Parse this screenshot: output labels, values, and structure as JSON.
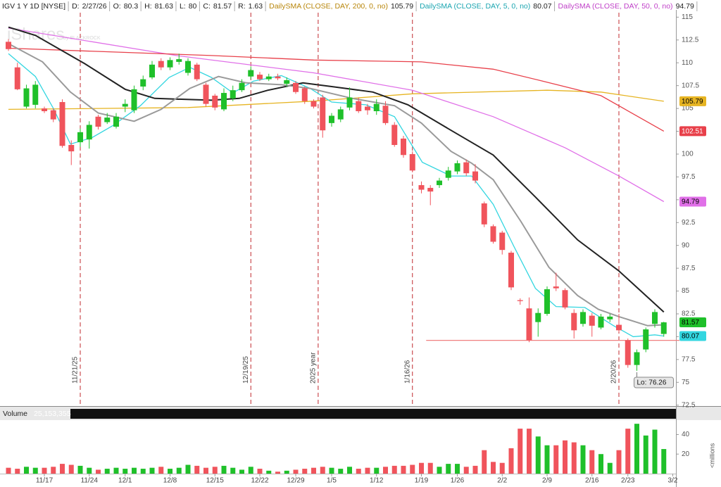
{
  "header": {
    "symbol": "IGV 1 Y 1D [NYSE]",
    "date_label": "D:",
    "date": "2/27/26",
    "open_label": "O:",
    "high_label": "H:",
    "low_label": "L:",
    "close_label": "C:",
    "range_label": "R:",
    "range": 1.63,
    "watermark": "iShares",
    "watermark_sub": "by BLACKROCK"
  },
  "chart_data": [
    {
      "type": "candlestick",
      "open": [
        112.3,
        109.5,
        105.2,
        105.4,
        105,
        104.8,
        105.7,
        101,
        101.3,
        101.6,
        104.1,
        103.5,
        103,
        105.2,
        104.8,
        107.4,
        108.4,
        110.2,
        109.5,
        110.1,
        108.9,
        109.8,
        107.6,
        106.4,
        104.9,
        106.1,
        107,
        108.5,
        108.7,
        108.2,
        108.5,
        107.7,
        107.8,
        107.2,
        105.8,
        106.2,
        103.4,
        103.8,
        105.1,
        105.8,
        105.2,
        104.7,
        105.3,
        103.2,
        101.7,
        100,
        96.6,
        96.3,
        96.6,
        97.4,
        98.1,
        99.1,
        98.1,
        94.6,
        92.1,
        91.4,
        89.2,
        84,
        83.1,
        81.6,
        82.5,
        85.5,
        85.1,
        82.6,
        81.4,
        82.3,
        81,
        81.9,
        81.3,
        79.6,
        76.9,
        78.6,
        81.4,
        80.3
      ],
      "high": [
        112.6,
        110,
        107.6,
        108,
        105.2,
        105,
        106,
        101.5,
        102.8,
        103.6,
        104.3,
        104.5,
        104.5,
        106,
        107.5,
        108.6,
        110.2,
        110.5,
        110.6,
        111,
        110.5,
        110,
        107.8,
        106.6,
        107.2,
        107.5,
        108.2,
        109.6,
        109,
        108.8,
        108.8,
        108.4,
        108,
        107.4,
        106,
        106.5,
        104.5,
        105.2,
        107.3,
        106.2,
        105.5,
        106,
        105.8,
        103.5,
        102,
        100.3,
        97,
        96.6,
        97.4,
        98.6,
        99.3,
        99.4,
        98.9,
        94.8,
        92.3,
        91.6,
        89.4,
        84.2,
        84.3,
        83.1,
        85.5,
        87,
        85.3,
        83,
        83,
        82.6,
        82.5,
        82.5,
        82.5,
        79.8,
        78.6,
        81,
        83,
        81.63
      ],
      "low": [
        111.3,
        107,
        105,
        105,
        104.5,
        103.5,
        100.7,
        98.8,
        100.8,
        100.6,
        102.7,
        103.3,
        102.8,
        104.6,
        104.5,
        107,
        108.2,
        109.2,
        109.2,
        109.8,
        108.6,
        108,
        105.2,
        104.8,
        104.7,
        105.8,
        106.8,
        108.2,
        108,
        108,
        108.1,
        107.4,
        106.6,
        105.5,
        105,
        101.8,
        103,
        103.5,
        104.8,
        104.5,
        104.3,
        104.3,
        103.2,
        100.8,
        99.6,
        98,
        95.7,
        94.4,
        96.3,
        97.1,
        97.8,
        97.6,
        96.8,
        92,
        90.2,
        89,
        85.1,
        83.5,
        79.4,
        80,
        82.3,
        85,
        83,
        79.8,
        81.1,
        80,
        80.8,
        81.6,
        80.5,
        76.6,
        76.26,
        78.3,
        81,
        80
      ],
      "close": [
        111.5,
        107.1,
        107.2,
        107.6,
        104.7,
        103.8,
        100.9,
        100.3,
        102.4,
        103.2,
        103,
        104,
        104.1,
        105.5,
        107.1,
        108.2,
        109.8,
        109.5,
        110.3,
        110.4,
        110.2,
        108.2,
        105.5,
        105.1,
        106.7,
        107,
        107.8,
        109.2,
        108.2,
        108.5,
        108.3,
        108.1,
        106.8,
        105.8,
        105.2,
        102.6,
        104.2,
        104.9,
        106.2,
        104.7,
        104.8,
        105.5,
        103.4,
        101,
        99.9,
        98.2,
        96.1,
        95.9,
        97.1,
        98.2,
        99,
        97.9,
        97.1,
        92.3,
        90.4,
        89.5,
        85.4,
        83.9,
        79.6,
        82.6,
        85.2,
        85.3,
        83.2,
        80.7,
        82.7,
        81.2,
        82.2,
        82.2,
        80.7,
        76.9,
        78.3,
        80.8,
        82.7,
        81.57
      ],
      "up_color": "#1fc02a",
      "down_color": "#f0545c",
      "ylim": [
        72.4,
        115.8
      ],
      "yticks": [
        115,
        112.5,
        110,
        107.5,
        105,
        102.5,
        100,
        97.5,
        95,
        92.5,
        90,
        87.5,
        85,
        82.5,
        80,
        77.5,
        75,
        72.5
      ],
      "series": [
        {
          "name": "DailySMA (CLOSE, DAY, 200, 0, no)",
          "color": "#e6b422",
          "bubble": true,
          "x": [
            0,
            20,
            34,
            45,
            60,
            66,
            73
          ],
          "values": [
            104.9,
            105.1,
            105.8,
            106.6,
            107,
            106.8,
            105.79
          ]
        },
        {
          "name": "DailySMA (CLOSE, DAY, 5, 0, no)",
          "color": "#33d6e0",
          "bubble": true,
          "x": [
            0,
            3,
            5,
            6.9,
            9.3,
            11.6,
            14.7,
            17.9,
            20.2,
            22.6,
            25,
            27.3,
            30.4,
            33.6,
            36,
            39.8,
            43,
            46.1,
            49.3,
            51.6,
            54,
            56.3,
            58.7,
            61,
            64.2,
            67.4,
            69.6,
            72,
            73
          ],
          "values": [
            111,
            108.5,
            105,
            101.1,
            101.8,
            103.1,
            105.3,
            108.4,
            109.5,
            108.4,
            106.7,
            108,
            108.6,
            107.2,
            105.7,
            105.4,
            104.1,
            99.1,
            97.6,
            97.6,
            94.5,
            89.9,
            85.3,
            83.3,
            83.2,
            81.2,
            80,
            80.2,
            80.07
          ]
        },
        {
          "name": "DailySMA (CLOSE, DAY, 50, 0, no)",
          "color": "#e070e8",
          "bubble": true,
          "x": [
            0,
            18.7,
            34,
            45,
            54,
            62,
            68,
            73
          ],
          "values": [
            113.8,
            110.8,
            108.9,
            107,
            104.1,
            100.7,
            97.6,
            94.79
          ]
        },
        {
          "color": "#e8404a",
          "bubble": true,
          "x": [
            0,
            22.6,
            34,
            46,
            54,
            59.5,
            66,
            73
          ],
          "values": [
            111.6,
            110.8,
            110.3,
            110.1,
            109.3,
            108,
            106.4,
            102.51
          ]
        },
        {
          "color": "#222222",
          "bubble": false,
          "x": [
            0,
            3,
            8.5,
            13,
            16.3,
            22.6,
            25.7,
            28.9,
            32.8,
            36,
            40.6,
            44.5,
            49.3,
            54,
            58.7,
            63.4,
            68,
            73
          ],
          "values": [
            113.9,
            113,
            109.9,
            107.1,
            106.1,
            105.9,
            106.1,
            107,
            107.8,
            107.4,
            106.8,
            105.4,
            102.6,
            99.9,
            95.3,
            90.6,
            87.2,
            82.7
          ]
        },
        {
          "color": "#9a9a9a",
          "bubble": false,
          "x": [
            0,
            3.8,
            6.9,
            10,
            14,
            17,
            20.2,
            23.4,
            26.5,
            30.4,
            33.6,
            38.3,
            43,
            46,
            49.3,
            51.6,
            54,
            57.1,
            60.2,
            63.4,
            65.7,
            68,
            71.2,
            73
          ],
          "values": [
            112.1,
            110.1,
            106.8,
            104.5,
            103.6,
            104.9,
            107.2,
            108.5,
            107.8,
            107.6,
            107.2,
            106.1,
            105.3,
            103.4,
            100.3,
            99,
            97.2,
            92.6,
            87.6,
            84.5,
            83,
            82.2,
            81.2,
            81.3
          ]
        }
      ],
      "hline": {
        "value": 79.6,
        "from": 47,
        "color": "#f08080"
      },
      "low_marker": {
        "label": "Lo:",
        "index": 70
      },
      "events": [
        {
          "x": 8,
          "label": "11/21/25"
        },
        {
          "x": 27,
          "label": "12/19/25"
        },
        {
          "x": 34.5,
          "label": "2025 year"
        },
        {
          "x": 45,
          "label": "1/16/26"
        },
        {
          "x": 68,
          "label": "2/20/26"
        }
      ],
      "event_color": "#c0282e"
    },
    {
      "type": "bar",
      "title": "Volume",
      "values": [
        6,
        5,
        7,
        6,
        6,
        7,
        10,
        9,
        8,
        6,
        4,
        5,
        6,
        5,
        6,
        5,
        6,
        7,
        5,
        6,
        9,
        8,
        6,
        7,
        8,
        6,
        4,
        7,
        5,
        3,
        2,
        3,
        4,
        5,
        6,
        7,
        6,
        5,
        7,
        5,
        6,
        6,
        7,
        8,
        8,
        9,
        11,
        11,
        7,
        10,
        10,
        7,
        8,
        24,
        12,
        11,
        26,
        46,
        46,
        38,
        29,
        29,
        34,
        32,
        29,
        24,
        20,
        11,
        24,
        46,
        51,
        39,
        45,
        25.153355
      ],
      "value_labels": [
        null,
        null,
        null,
        null,
        null,
        null,
        null,
        null,
        null,
        null,
        null,
        null,
        null,
        null,
        null,
        null,
        null,
        null,
        null,
        null,
        null,
        null,
        null,
        null,
        null,
        null,
        null,
        null,
        null,
        null,
        null,
        null,
        null,
        null,
        null,
        null,
        null,
        null,
        null,
        null,
        null,
        null,
        null,
        null,
        null,
        null,
        null,
        null,
        null,
        null,
        null,
        null,
        null,
        null,
        null,
        null,
        null,
        null,
        null,
        null,
        null,
        null,
        null,
        null,
        null,
        null,
        null,
        null,
        null,
        null,
        null,
        null,
        null,
        "25,153,355"
      ],
      "ylim": [
        0,
        54
      ],
      "yticks": [
        20,
        40
      ],
      "unit": "<millions",
      "xticks": [
        {
          "value": 4,
          "label": "11/17"
        },
        {
          "value": 9,
          "label": "11/24"
        },
        {
          "value": 13,
          "label": "12/1"
        },
        {
          "value": 18,
          "label": "12/8"
        },
        {
          "value": 23,
          "label": "12/15"
        },
        {
          "value": 28,
          "label": "12/22"
        },
        {
          "value": 32,
          "label": "12/29"
        },
        {
          "value": 36,
          "label": "1/5"
        },
        {
          "value": 41,
          "label": "1/12"
        },
        {
          "value": 46,
          "label": "1/19"
        },
        {
          "value": 50,
          "label": "1/26"
        },
        {
          "value": 55,
          "label": "2/2"
        },
        {
          "value": 60,
          "label": "2/9"
        },
        {
          "value": 65,
          "label": "2/16"
        },
        {
          "value": 69,
          "label": "2/23"
        },
        {
          "value": 74,
          "label": "3/2"
        }
      ]
    }
  ]
}
